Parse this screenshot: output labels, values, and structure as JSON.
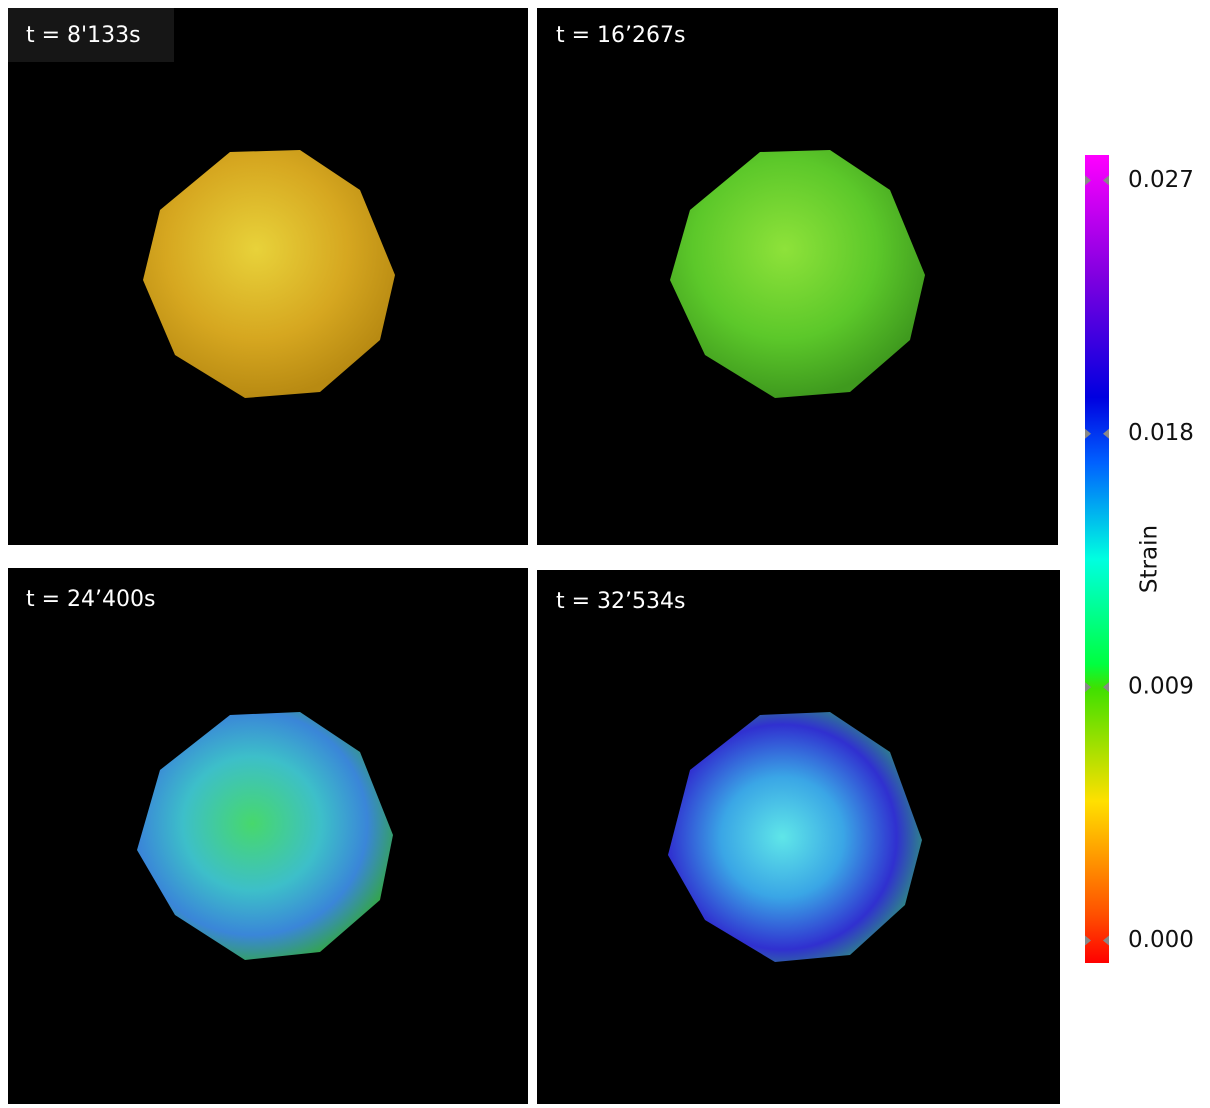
{
  "panels": [
    {
      "label": "t = 8'133s"
    },
    {
      "label": "t = 16’267s"
    },
    {
      "label": "t = 24’400s"
    },
    {
      "label": "t = 32’534s"
    }
  ],
  "colorbar": {
    "title": "Strain",
    "lim": [
      -0.0008,
      0.0279
    ],
    "ticks": [
      0.027,
      0.018,
      0.009,
      {
        "value": 0,
        "label": "0.000"
      }
    ]
  }
}
